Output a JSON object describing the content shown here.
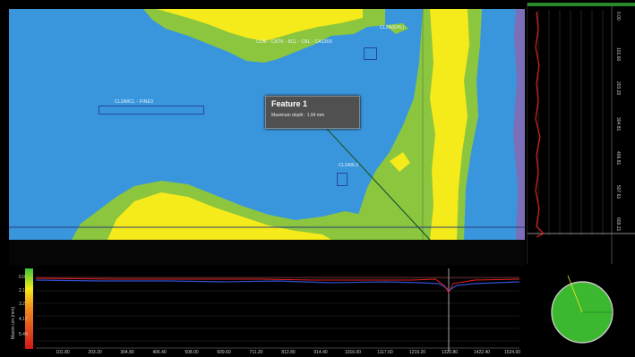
{
  "tooltip": {
    "title": "Feature 1",
    "line": "Maximum depth : 1.94 mm"
  },
  "map_labels": [
    {
      "text": "CL2A(EHL)",
      "color": "#e8f4ff"
    },
    {
      "text": "CLIE - CATK - 8CL - CBL - CA1900",
      "color": "#e8f4ff"
    },
    {
      "text": "CL2A8CL - FINE3",
      "color": "#e8f4ff"
    },
    {
      "text": "CL2A8L3",
      "color": "#e8f4ff"
    }
  ],
  "hprofile": {
    "y_axis_title": "Maxim um (mm)",
    "y_ticks": [
      "0.0",
      "2.1",
      "3.2",
      "4.17",
      "5.49"
    ],
    "x_ticks": [
      "101.80",
      "203.20",
      "304.80",
      "406.40",
      "508.00",
      "609.60",
      "711.20",
      "812.80",
      "914.40",
      "1016.00",
      "1117.60",
      "1219.20",
      "1320.80",
      "1422.40",
      "1524.00"
    ]
  },
  "vprofile": {
    "ticks": [
      "0.00",
      "101.60",
      "203.20",
      "304.81",
      "406.81",
      "507.61",
      "609.21"
    ]
  },
  "colors": {
    "background": "#3a96dc",
    "yellow": "#f5ea1a",
    "green": "#8cc63f",
    "profile_red": "#e02020",
    "profile_blue": "#3050d0",
    "circle_green": "#3cb830"
  }
}
